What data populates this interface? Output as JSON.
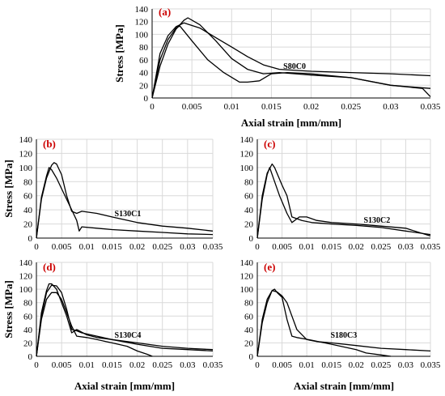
{
  "colors": {
    "panel_label": "#cc0000",
    "curve": "#000000",
    "grid": "#d9d9d9"
  },
  "chart_data": [
    {
      "type": "line",
      "panel_label": "(a)",
      "annotation": "S80C0",
      "xlabel": "Axial strain [mm/mm]",
      "ylabel": "Stress [MPa]",
      "xlim": [
        0,
        0.035
      ],
      "ylim": [
        0,
        140
      ],
      "xticks": [
        "0",
        "0.005",
        "0.01",
        "0.015",
        "0.02",
        "0.025",
        "0.03",
        "0.035"
      ],
      "yticks": [
        "0",
        "20",
        "40",
        "60",
        "80",
        "100",
        "120",
        "140"
      ],
      "grid": true,
      "series": [
        {
          "x": [
            0,
            0.001,
            0.002,
            0.003,
            0.004,
            0.0045,
            0.006,
            0.008,
            0.01,
            0.012,
            0.014,
            0.016,
            0.018,
            0.02,
            0.025,
            0.03,
            0.035
          ],
          "y": [
            0,
            50,
            85,
            108,
            122,
            126,
            115,
            90,
            62,
            45,
            38,
            40,
            38,
            36,
            32,
            20,
            15
          ]
        },
        {
          "x": [
            0,
            0.001,
            0.002,
            0.003,
            0.0035,
            0.005,
            0.007,
            0.009,
            0.011,
            0.012,
            0.0135,
            0.015,
            0.017,
            0.02,
            0.025,
            0.03,
            0.034,
            0.035
          ],
          "y": [
            0,
            60,
            92,
            110,
            113,
            90,
            60,
            40,
            25,
            25,
            27,
            38,
            40,
            38,
            32,
            20,
            15,
            2
          ]
        },
        {
          "x": [
            0,
            0.001,
            0.002,
            0.003,
            0.004,
            0.006,
            0.008,
            0.01,
            0.012,
            0.014,
            0.016,
            0.02,
            0.025,
            0.03,
            0.035
          ],
          "y": [
            0,
            70,
            98,
            112,
            118,
            110,
            95,
            80,
            65,
            52,
            45,
            42,
            40,
            38,
            35
          ]
        }
      ]
    },
    {
      "type": "line",
      "panel_label": "(b)",
      "annotation": "S130C1",
      "xlabel": "Axial strain [mm/mm]",
      "ylabel": "Stress [MPa]",
      "xlim": [
        0,
        0.035
      ],
      "ylim": [
        0,
        140
      ],
      "xticks": [
        "0",
        "0.005",
        "0.01",
        "0.015",
        "0.02",
        "0.025",
        "0.03",
        "0.035"
      ],
      "yticks": [
        "0",
        "20",
        "40",
        "60",
        "80",
        "100",
        "120",
        "140"
      ],
      "grid": true,
      "series": [
        {
          "x": [
            0,
            0.001,
            0.002,
            0.003,
            0.0035,
            0.004,
            0.005,
            0.006,
            0.007,
            0.008,
            0.009,
            0.012,
            0.015,
            0.02,
            0.025,
            0.03,
            0.035
          ],
          "y": [
            0,
            55,
            85,
            103,
            107,
            105,
            90,
            60,
            38,
            35,
            38,
            35,
            30,
            22,
            17,
            14,
            10
          ]
        },
        {
          "x": [
            0,
            0.001,
            0.002,
            0.0025,
            0.003,
            0.004,
            0.005,
            0.006,
            0.007,
            0.008,
            0.0085,
            0.009,
            0.012,
            0.015,
            0.02,
            0.025,
            0.03,
            0.035
          ],
          "y": [
            0,
            58,
            88,
            100,
            97,
            85,
            70,
            55,
            40,
            25,
            10,
            16,
            14,
            12,
            10,
            8,
            6,
            5
          ]
        }
      ]
    },
    {
      "type": "line",
      "panel_label": "(c)",
      "annotation": "S130C2",
      "xlabel": "",
      "ylabel": "",
      "xlim": [
        0,
        0.035
      ],
      "ylim": [
        0,
        140
      ],
      "xticks": [
        "0",
        "0.005",
        "0.01",
        "0.015",
        "0.02",
        "0.025",
        "0.03",
        "0.035"
      ],
      "yticks": [
        "0",
        "20",
        "40",
        "60",
        "80",
        "100",
        "120",
        "140"
      ],
      "grid": true,
      "series": [
        {
          "x": [
            0,
            0.001,
            0.002,
            0.0025,
            0.0035,
            0.0045,
            0.006,
            0.007,
            0.0085,
            0.01,
            0.012,
            0.015,
            0.02,
            0.025,
            0.03,
            0.035
          ],
          "y": [
            0,
            55,
            90,
            100,
            80,
            60,
            35,
            22,
            30,
            30,
            25,
            22,
            20,
            17,
            14,
            3
          ]
        },
        {
          "x": [
            0,
            0.001,
            0.002,
            0.003,
            0.0035,
            0.005,
            0.006,
            0.007,
            0.009,
            0.011,
            0.015,
            0.02,
            0.025,
            0.03,
            0.035
          ],
          "y": [
            0,
            60,
            92,
            105,
            100,
            75,
            60,
            30,
            25,
            22,
            20,
            18,
            15,
            10,
            5
          ]
        }
      ]
    },
    {
      "type": "line",
      "panel_label": "(d)",
      "annotation": "S130C4",
      "xlabel": "Axial strain [mm/mm]",
      "ylabel": "Stress [MPa]",
      "xlim": [
        0,
        0.035
      ],
      "ylim": [
        0,
        140
      ],
      "xticks": [
        "0",
        "0.005",
        "0.01",
        "0.015",
        "0.02",
        "0.025",
        "0.03",
        "0.035"
      ],
      "yticks": [
        "0",
        "20",
        "40",
        "60",
        "80",
        "100",
        "120",
        "140"
      ],
      "grid": true,
      "series": [
        {
          "x": [
            0,
            0.001,
            0.002,
            0.0025,
            0.003,
            0.004,
            0.005,
            0.006,
            0.007,
            0.008,
            0.01,
            0.012,
            0.015,
            0.02,
            0.025,
            0.03,
            0.035
          ],
          "y": [
            0,
            65,
            98,
            108,
            108,
            100,
            80,
            60,
            35,
            40,
            32,
            28,
            25,
            20,
            15,
            12,
            10
          ]
        },
        {
          "x": [
            0,
            0.001,
            0.002,
            0.003,
            0.004,
            0.005,
            0.006,
            0.007,
            0.008,
            0.009,
            0.012,
            0.015,
            0.02,
            0.025,
            0.03,
            0.035
          ],
          "y": [
            0,
            60,
            95,
            106,
            105,
            95,
            70,
            40,
            38,
            35,
            30,
            25,
            18,
            12,
            10,
            8
          ]
        },
        {
          "x": [
            0,
            0.001,
            0.002,
            0.003,
            0.004,
            0.005,
            0.006,
            0.007,
            0.008,
            0.01,
            0.012,
            0.015,
            0.018,
            0.02,
            0.022,
            0.023
          ],
          "y": [
            0,
            55,
            85,
            95,
            95,
            85,
            65,
            45,
            30,
            28,
            25,
            20,
            15,
            8,
            3,
            0
          ]
        }
      ]
    },
    {
      "type": "line",
      "panel_label": "(e)",
      "annotation": "S180C3",
      "xlabel": "Axial strain [mm/mm]",
      "ylabel": "",
      "xlim": [
        0,
        0.035
      ],
      "ylim": [
        0,
        140
      ],
      "xticks": [
        "0",
        "0.005",
        "0.01",
        "0.015",
        "0.02",
        "0.025",
        "0.03",
        "0.035"
      ],
      "yticks": [
        "0",
        "20",
        "40",
        "60",
        "80",
        "100",
        "120",
        "140"
      ],
      "grid": true,
      "series": [
        {
          "x": [
            0,
            0.001,
            0.002,
            0.003,
            0.004,
            0.005,
            0.006,
            0.007,
            0.008,
            0.01,
            0.012,
            0.015,
            0.02,
            0.025,
            0.03,
            0.035
          ],
          "y": [
            0,
            55,
            85,
            98,
            96,
            90,
            80,
            60,
            40,
            25,
            22,
            20,
            16,
            12,
            10,
            8
          ]
        },
        {
          "x": [
            0,
            0.001,
            0.002,
            0.003,
            0.0035,
            0.004,
            0.005,
            0.006,
            0.007,
            0.008,
            0.011,
            0.015,
            0.02,
            0.022,
            0.025,
            0.027
          ],
          "y": [
            0,
            50,
            80,
            98,
            100,
            95,
            88,
            55,
            30,
            28,
            24,
            18,
            10,
            5,
            2,
            0
          ]
        }
      ]
    }
  ]
}
